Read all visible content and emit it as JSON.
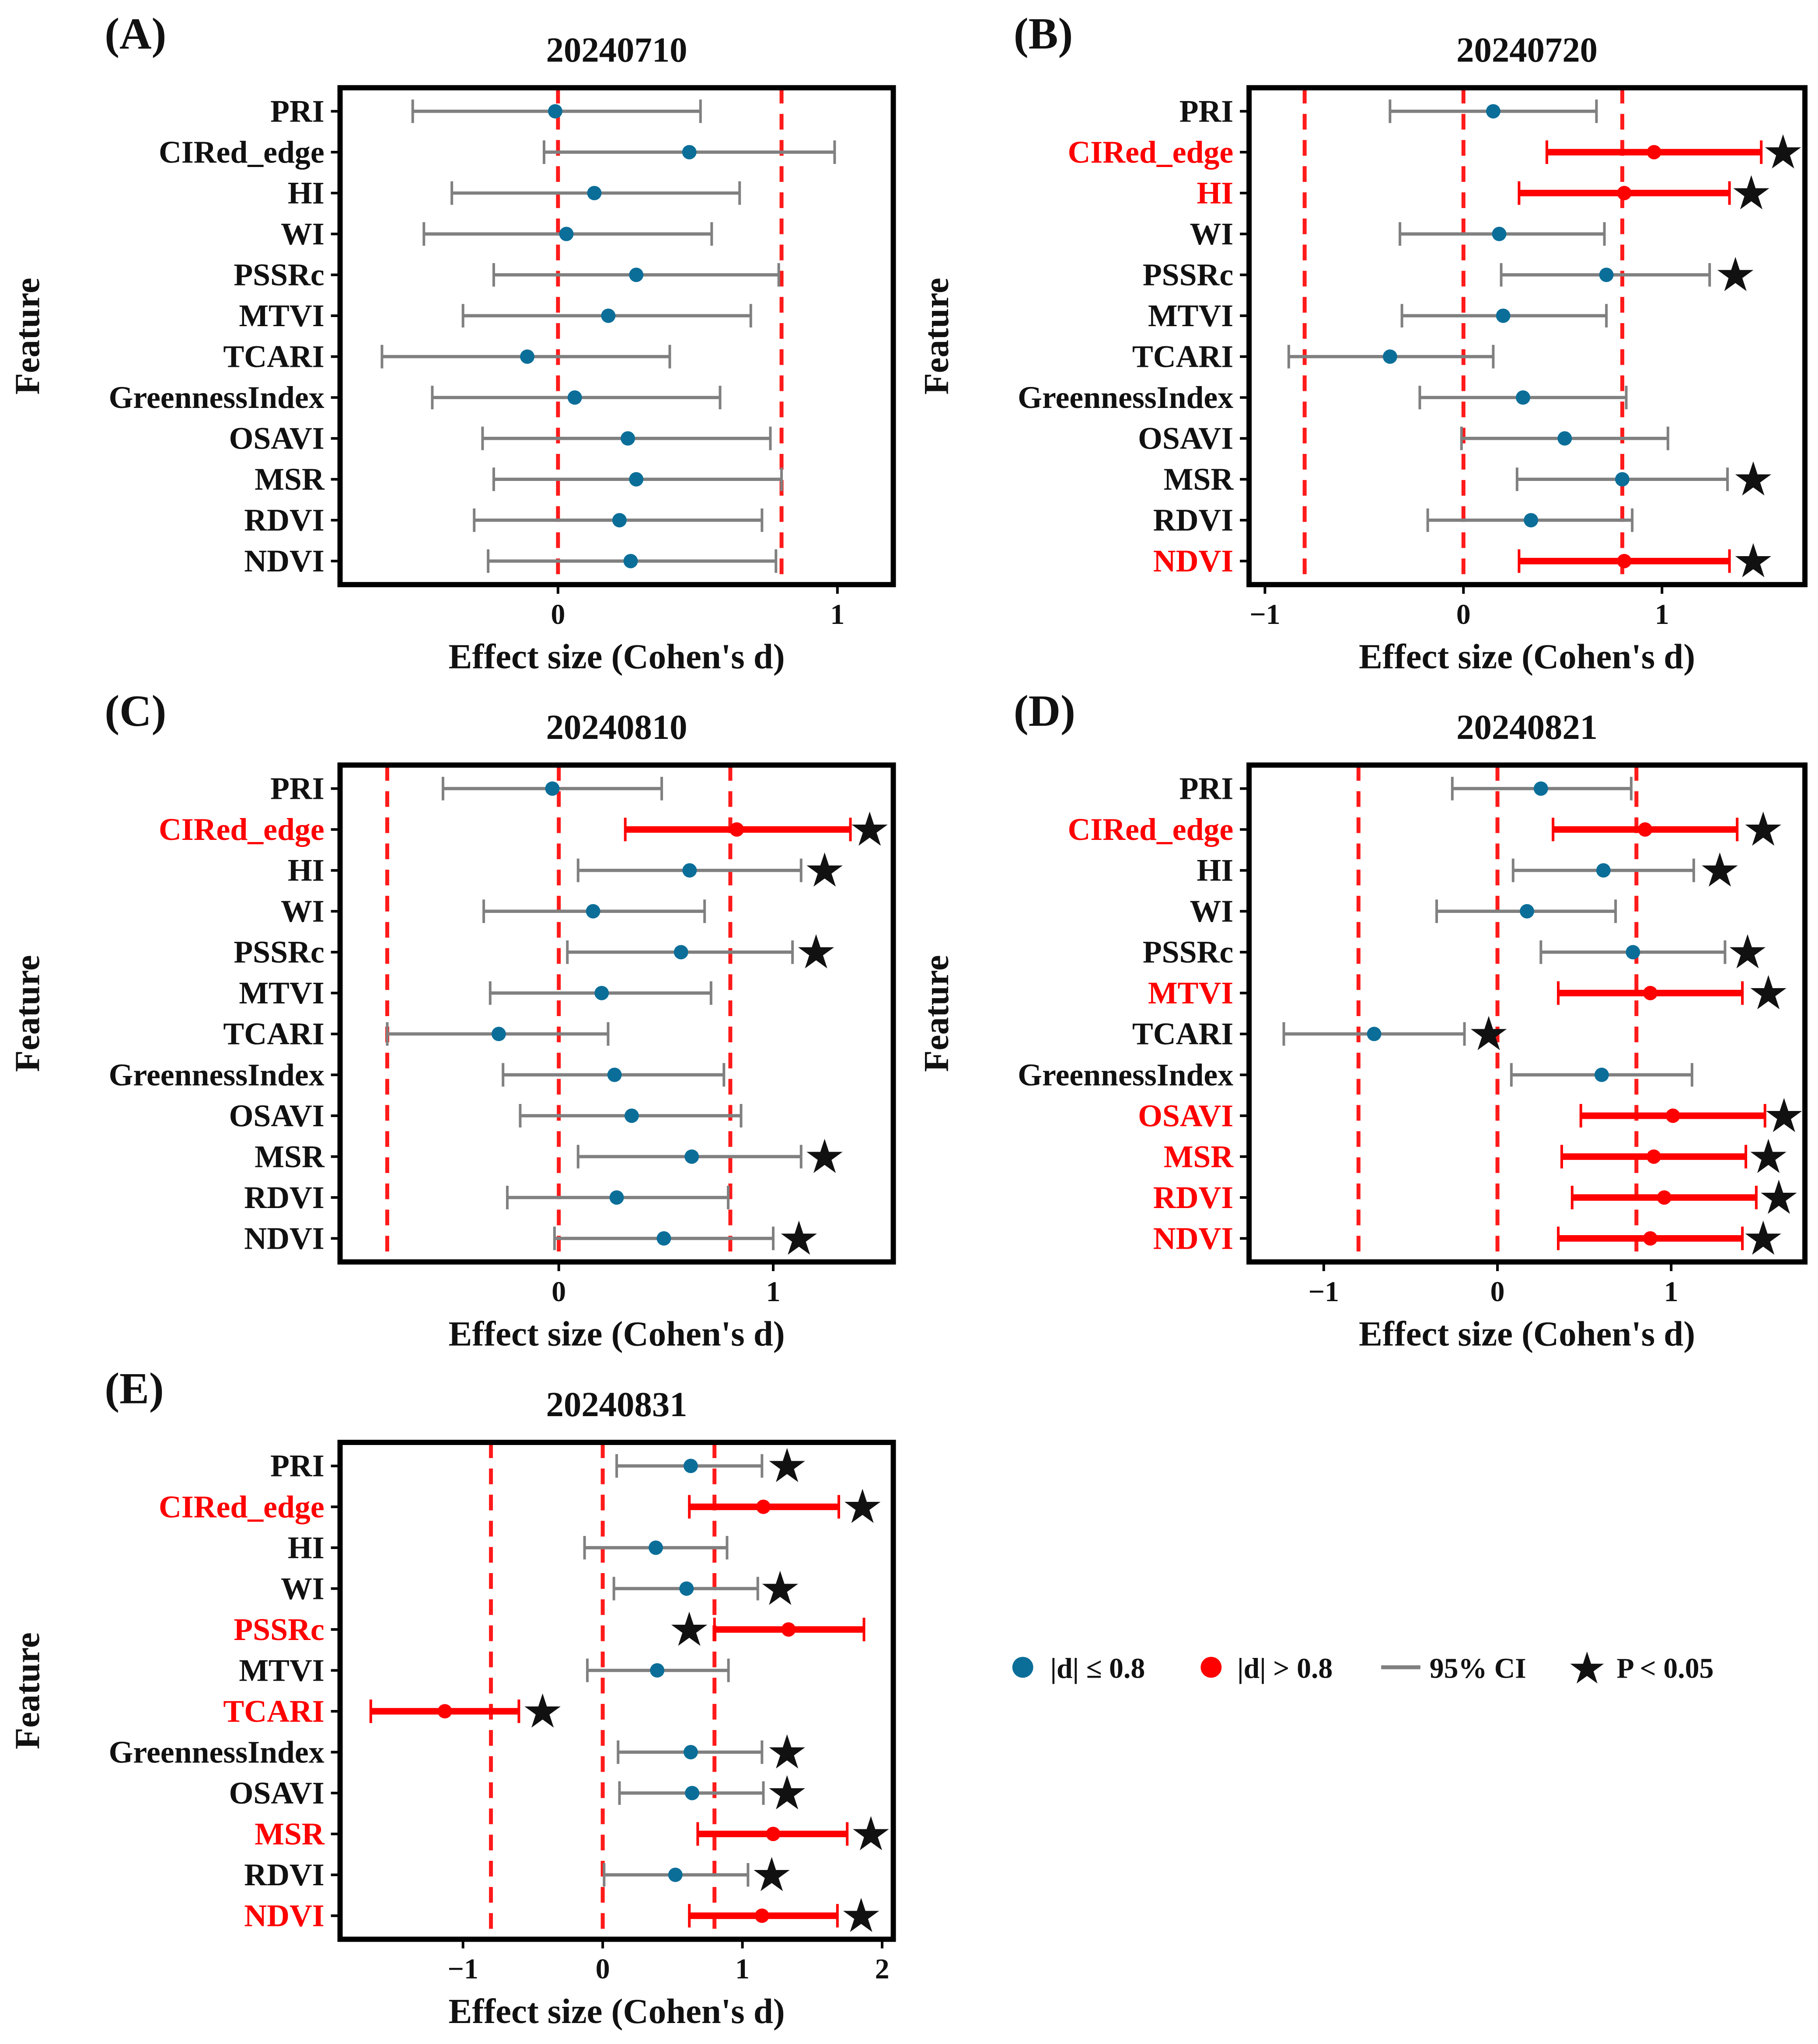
{
  "colors": {
    "small": "#0b6e99",
    "large": "#ff0000",
    "ci": "#808080",
    "threshold": "#ff1a1a",
    "star": "#000000"
  },
  "legend": {
    "small_label": "|d| ≤ 0.8",
    "large_label": "|d| > 0.8",
    "ci_label": "95% CI",
    "star_label": "P < 0.05"
  },
  "chart_data": [
    {
      "panel": "(A)",
      "type": "forest",
      "title": "20240710",
      "xlabel": "Effect size (Cohen's d)",
      "ylabel": "Feature",
      "xlim": [
        -0.78,
        1.2
      ],
      "xticks": [
        0,
        1
      ],
      "thresholds": [
        0,
        0.8
      ],
      "rows": [
        {
          "feature": "PRI",
          "d": -0.01,
          "lo": -0.52,
          "hi": 0.51,
          "star": null
        },
        {
          "feature": "CIRed_edge",
          "d": 0.47,
          "lo": -0.05,
          "hi": 0.99,
          "star": null
        },
        {
          "feature": "HI",
          "d": 0.13,
          "lo": -0.38,
          "hi": 0.65,
          "star": null
        },
        {
          "feature": "WI",
          "d": 0.03,
          "lo": -0.48,
          "hi": 0.55,
          "star": null
        },
        {
          "feature": "PSSRc",
          "d": 0.28,
          "lo": -0.23,
          "hi": 0.79,
          "star": null
        },
        {
          "feature": "MTVI",
          "d": 0.18,
          "lo": -0.34,
          "hi": 0.69,
          "star": null
        },
        {
          "feature": "TCARI",
          "d": -0.11,
          "lo": -0.63,
          "hi": 0.4,
          "star": null
        },
        {
          "feature": "GreennessIndex",
          "d": 0.06,
          "lo": -0.45,
          "hi": 0.58,
          "star": null
        },
        {
          "feature": "OSAVI",
          "d": 0.25,
          "lo": -0.27,
          "hi": 0.76,
          "star": null
        },
        {
          "feature": "MSR",
          "d": 0.28,
          "lo": -0.23,
          "hi": 0.8,
          "star": null
        },
        {
          "feature": "RDVI",
          "d": 0.22,
          "lo": -0.3,
          "hi": 0.73,
          "star": null
        },
        {
          "feature": "NDVI",
          "d": 0.26,
          "lo": -0.25,
          "hi": 0.78,
          "star": null
        }
      ]
    },
    {
      "panel": "(B)",
      "type": "forest",
      "title": "20240720",
      "xlabel": "Effect size (Cohen's d)",
      "ylabel": "Feature",
      "xlim": [
        -1.08,
        1.72
      ],
      "xticks": [
        -1,
        0,
        1
      ],
      "thresholds": [
        -0.8,
        0,
        0.8
      ],
      "rows": [
        {
          "feature": "PRI",
          "d": 0.15,
          "lo": -0.37,
          "hi": 0.67,
          "star": null
        },
        {
          "feature": "CIRed_edge",
          "d": 0.96,
          "lo": 0.42,
          "hi": 1.5,
          "star": 1.61
        },
        {
          "feature": "HI",
          "d": 0.81,
          "lo": 0.28,
          "hi": 1.34,
          "star": 1.45
        },
        {
          "feature": "WI",
          "d": 0.18,
          "lo": -0.32,
          "hi": 0.71,
          "star": null
        },
        {
          "feature": "PSSRc",
          "d": 0.72,
          "lo": 0.19,
          "hi": 1.24,
          "star": 1.37
        },
        {
          "feature": "MTVI",
          "d": 0.2,
          "lo": -0.31,
          "hi": 0.72,
          "star": null
        },
        {
          "feature": "TCARI",
          "d": -0.37,
          "lo": -0.88,
          "hi": 0.15,
          "star": null
        },
        {
          "feature": "GreennessIndex",
          "d": 0.3,
          "lo": -0.22,
          "hi": 0.82,
          "star": null
        },
        {
          "feature": "OSAVI",
          "d": 0.51,
          "lo": -0.01,
          "hi": 1.03,
          "star": null
        },
        {
          "feature": "MSR",
          "d": 0.8,
          "lo": 0.27,
          "hi": 1.33,
          "star": 1.46
        },
        {
          "feature": "RDVI",
          "d": 0.34,
          "lo": -0.18,
          "hi": 0.85,
          "star": null
        },
        {
          "feature": "NDVI",
          "d": 0.81,
          "lo": 0.28,
          "hi": 1.34,
          "star": 1.46
        }
      ]
    },
    {
      "panel": "(C)",
      "type": "forest",
      "title": "20240810",
      "xlabel": "Effect size (Cohen's d)",
      "ylabel": "Feature",
      "xlim": [
        -1.02,
        1.56
      ],
      "xticks": [
        0,
        1
      ],
      "thresholds": [
        -0.8,
        0,
        0.8
      ],
      "rows": [
        {
          "feature": "PRI",
          "d": -0.03,
          "lo": -0.54,
          "hi": 0.48,
          "star": null
        },
        {
          "feature": "CIRed_edge",
          "d": 0.83,
          "lo": 0.31,
          "hi": 1.36,
          "star": 1.45
        },
        {
          "feature": "HI",
          "d": 0.61,
          "lo": 0.09,
          "hi": 1.13,
          "star": 1.24
        },
        {
          "feature": "WI",
          "d": 0.16,
          "lo": -0.35,
          "hi": 0.68,
          "star": null
        },
        {
          "feature": "PSSRc",
          "d": 0.57,
          "lo": 0.04,
          "hi": 1.09,
          "star": 1.2
        },
        {
          "feature": "MTVI",
          "d": 0.2,
          "lo": -0.32,
          "hi": 0.71,
          "star": null
        },
        {
          "feature": "TCARI",
          "d": -0.28,
          "lo": -0.8,
          "hi": 0.23,
          "star": null
        },
        {
          "feature": "GreennessIndex",
          "d": 0.26,
          "lo": -0.26,
          "hi": 0.77,
          "star": null
        },
        {
          "feature": "OSAVI",
          "d": 0.34,
          "lo": -0.18,
          "hi": 0.85,
          "star": null
        },
        {
          "feature": "MSR",
          "d": 0.62,
          "lo": 0.09,
          "hi": 1.13,
          "star": 1.24
        },
        {
          "feature": "RDVI",
          "d": 0.27,
          "lo": -0.24,
          "hi": 0.79,
          "star": null
        },
        {
          "feature": "NDVI",
          "d": 0.49,
          "lo": -0.02,
          "hi": 1.0,
          "star": 1.12
        }
      ]
    },
    {
      "panel": "(D)",
      "type": "forest",
      "title": "20240821",
      "xlabel": "Effect size (Cohen's d)",
      "ylabel": "Feature",
      "xlim": [
        -1.43,
        1.77
      ],
      "xticks": [
        -1,
        0,
        1
      ],
      "thresholds": [
        -0.8,
        0,
        0.8
      ],
      "rows": [
        {
          "feature": "PRI",
          "d": 0.25,
          "lo": -0.26,
          "hi": 0.77,
          "star": null
        },
        {
          "feature": "CIRed_edge",
          "d": 0.85,
          "lo": 0.32,
          "hi": 1.38,
          "star": 1.53
        },
        {
          "feature": "HI",
          "d": 0.61,
          "lo": 0.09,
          "hi": 1.13,
          "star": 1.28
        },
        {
          "feature": "WI",
          "d": 0.17,
          "lo": -0.35,
          "hi": 0.68,
          "star": null
        },
        {
          "feature": "PSSRc",
          "d": 0.78,
          "lo": 0.25,
          "hi": 1.31,
          "star": 1.44
        },
        {
          "feature": "MTVI",
          "d": 0.88,
          "lo": 0.35,
          "hi": 1.41,
          "star": 1.56
        },
        {
          "feature": "TCARI",
          "d": -0.71,
          "lo": -1.23,
          "hi": -0.19,
          "star": -0.05
        },
        {
          "feature": "GreennessIndex",
          "d": 0.6,
          "lo": 0.08,
          "hi": 1.12,
          "star": null
        },
        {
          "feature": "OSAVI",
          "d": 1.01,
          "lo": 0.48,
          "hi": 1.54,
          "star": 1.65
        },
        {
          "feature": "MSR",
          "d": 0.9,
          "lo": 0.37,
          "hi": 1.43,
          "star": 1.56
        },
        {
          "feature": "RDVI",
          "d": 0.96,
          "lo": 0.43,
          "hi": 1.49,
          "star": 1.62
        },
        {
          "feature": "NDVI",
          "d": 0.88,
          "lo": 0.35,
          "hi": 1.41,
          "star": 1.53
        }
      ]
    },
    {
      "panel": "(E)",
      "type": "forest",
      "title": "20240831",
      "xlabel": "Effect size (Cohen's d)",
      "ylabel": "Feature",
      "xlim": [
        -1.88,
        2.08
      ],
      "xticks": [
        -1,
        0,
        1,
        2
      ],
      "thresholds": [
        -0.8,
        0,
        0.8
      ],
      "rows": [
        {
          "feature": "PRI",
          "d": 0.63,
          "lo": 0.1,
          "hi": 1.14,
          "star": 1.32
        },
        {
          "feature": "CIRed_edge",
          "d": 1.15,
          "lo": 0.62,
          "hi": 1.69,
          "star": 1.86
        },
        {
          "feature": "HI",
          "d": 0.38,
          "lo": -0.13,
          "hi": 0.89,
          "star": null
        },
        {
          "feature": "WI",
          "d": 0.6,
          "lo": 0.08,
          "hi": 1.11,
          "star": 1.27
        },
        {
          "feature": "PSSRc",
          "d": 1.33,
          "lo": 0.8,
          "hi": 1.87,
          "star": 0.62
        },
        {
          "feature": "MTVI",
          "d": 0.39,
          "lo": -0.11,
          "hi": 0.9,
          "star": null
        },
        {
          "feature": "TCARI",
          "d": -1.13,
          "lo": -1.66,
          "hi": -0.6,
          "star": -0.43
        },
        {
          "feature": "GreennessIndex",
          "d": 0.63,
          "lo": 0.11,
          "hi": 1.14,
          "star": 1.32
        },
        {
          "feature": "OSAVI",
          "d": 0.64,
          "lo": 0.12,
          "hi": 1.15,
          "star": 1.32
        },
        {
          "feature": "MSR",
          "d": 1.22,
          "lo": 0.68,
          "hi": 1.75,
          "star": 1.92
        },
        {
          "feature": "RDVI",
          "d": 0.52,
          "lo": 0.01,
          "hi": 1.04,
          "star": 1.21
        },
        {
          "feature": "NDVI",
          "d": 1.14,
          "lo": 0.62,
          "hi": 1.68,
          "star": 1.85
        }
      ]
    }
  ]
}
